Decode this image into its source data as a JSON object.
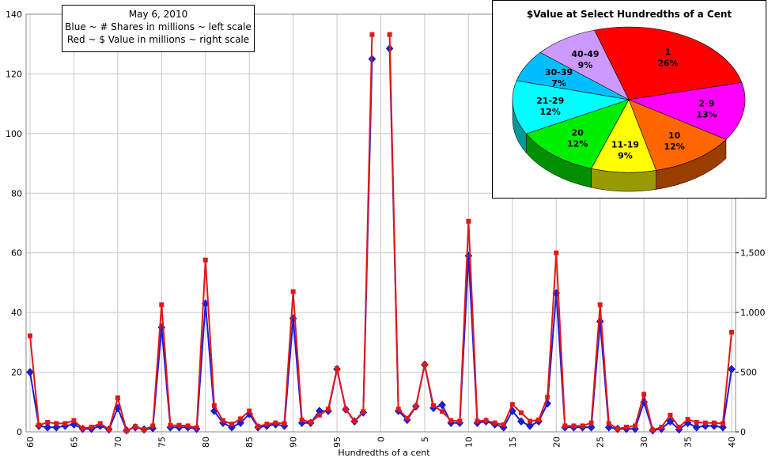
{
  "legend": {
    "line1": "May 6, 2010",
    "line2": "Blue ~ # Shares in millions ~ left scale",
    "line3": "Red ~ $ Value in millions ~ right scale"
  },
  "chart_data": [
    {
      "type": "line",
      "xlabel": "Hundredths of a cent",
      "categories": [
        "60",
        "61",
        "62",
        "63",
        "64",
        "65",
        "66",
        "67",
        "68",
        "69",
        "70",
        "71",
        "72",
        "73",
        "74",
        "75",
        "76",
        "77",
        "78",
        "79",
        "80",
        "81",
        "82",
        "83",
        "84",
        "85",
        "86",
        "87",
        "88",
        "89",
        "90",
        "91",
        "92",
        "93",
        "94",
        "95",
        "96",
        "97",
        "98",
        "99",
        "0",
        "1",
        "2",
        "3",
        "4",
        "5",
        "6",
        "7",
        "8",
        "9",
        "10",
        "11",
        "12",
        "13",
        "14",
        "15",
        "16",
        "17",
        "18",
        "19",
        "20",
        "21",
        "22",
        "23",
        "24",
        "25",
        "26",
        "27",
        "28",
        "29",
        "30",
        "31",
        "32",
        "33",
        "34",
        "35",
        "36",
        "37",
        "38",
        "39",
        "40"
      ],
      "x_tick_labels": [
        "60",
        "65",
        "70",
        "75",
        "80",
        "85",
        "90",
        "95",
        "0",
        "5",
        "10",
        "15",
        "20",
        "25",
        "30",
        "35",
        "40"
      ],
      "left_axis": {
        "ylim": [
          0,
          140
        ],
        "ticks": [
          "0",
          "20",
          "40",
          "60",
          "80",
          "100",
          "120",
          "140"
        ]
      },
      "right_axis": {
        "ylim": [
          0,
          3500
        ],
        "ticks": [
          "0",
          "500",
          "1,000",
          "1,500"
        ]
      },
      "grid": true,
      "series": [
        {
          "axis": "left",
          "color": "#1c1ce0",
          "marker": "diamond",
          "values": [
            20,
            2,
            1.5,
            1.5,
            2,
            2.5,
            1,
            1,
            2,
            0.8,
            8,
            0.5,
            1.5,
            0.8,
            1.2,
            35,
            1.5,
            1.5,
            1.5,
            1,
            43,
            7,
            3,
            1.5,
            3,
            6,
            1.5,
            2,
            2.5,
            2,
            38,
            3,
            3,
            7,
            7,
            21,
            7.5,
            3.5,
            6.5,
            125,
            null,
            128.5,
            7,
            4,
            8.5,
            22.5,
            8,
            9,
            3,
            3,
            59,
            3,
            3.5,
            2.5,
            1.5,
            7,
            3.5,
            2,
            3.5,
            9.5,
            46.5,
            1.5,
            1.5,
            1.5,
            1.5,
            37,
            1.5,
            1,
            1,
            1,
            10,
            0.5,
            1,
            3.5,
            0.8,
            3,
            1.5,
            2,
            2,
            1.5,
            21
          ]
        },
        {
          "axis": "right",
          "color": "#e01818",
          "marker": "square",
          "values": [
            805,
            55,
            80,
            70,
            70,
            95,
            30,
            40,
            70,
            20,
            285,
            10,
            45,
            20,
            50,
            1065,
            55,
            55,
            50,
            35,
            1440,
            220,
            95,
            65,
            110,
            175,
            45,
            65,
            75,
            70,
            1175,
            100,
            80,
            140,
            190,
            530,
            190,
            90,
            170,
            3330,
            null,
            3330,
            190,
            115,
            215,
            565,
            220,
            170,
            95,
            90,
            1765,
            90,
            95,
            75,
            60,
            230,
            160,
            90,
            100,
            290,
            1500,
            50,
            50,
            50,
            75,
            1065,
            70,
            25,
            40,
            50,
            315,
            15,
            40,
            140,
            40,
            105,
            80,
            75,
            75,
            70,
            835
          ]
        }
      ]
    },
    {
      "type": "pie",
      "title": "$Value at Select Hundredths of a Cent",
      "slices": [
        {
          "label": "1",
          "percent": "26%",
          "value": 26,
          "color": "#ff0000"
        },
        {
          "label": "2-9",
          "percent": "13%",
          "value": 13,
          "color": "#ff00ff"
        },
        {
          "label": "10",
          "percent": "12%",
          "value": 12,
          "color": "#ff6600"
        },
        {
          "label": "11-19",
          "percent": "9%",
          "value": 9,
          "color": "#ffff00"
        },
        {
          "label": "20",
          "percent": "12%",
          "value": 12,
          "color": "#00ee00"
        },
        {
          "label": "21-29",
          "percent": "12%",
          "value": 12,
          "color": "#00ffff"
        },
        {
          "label": "30-39",
          "percent": "7%",
          "value": 7,
          "color": "#00bfff"
        },
        {
          "label": "40-49",
          "percent": "9%",
          "value": 9,
          "color": "#cc99ff"
        }
      ]
    }
  ]
}
